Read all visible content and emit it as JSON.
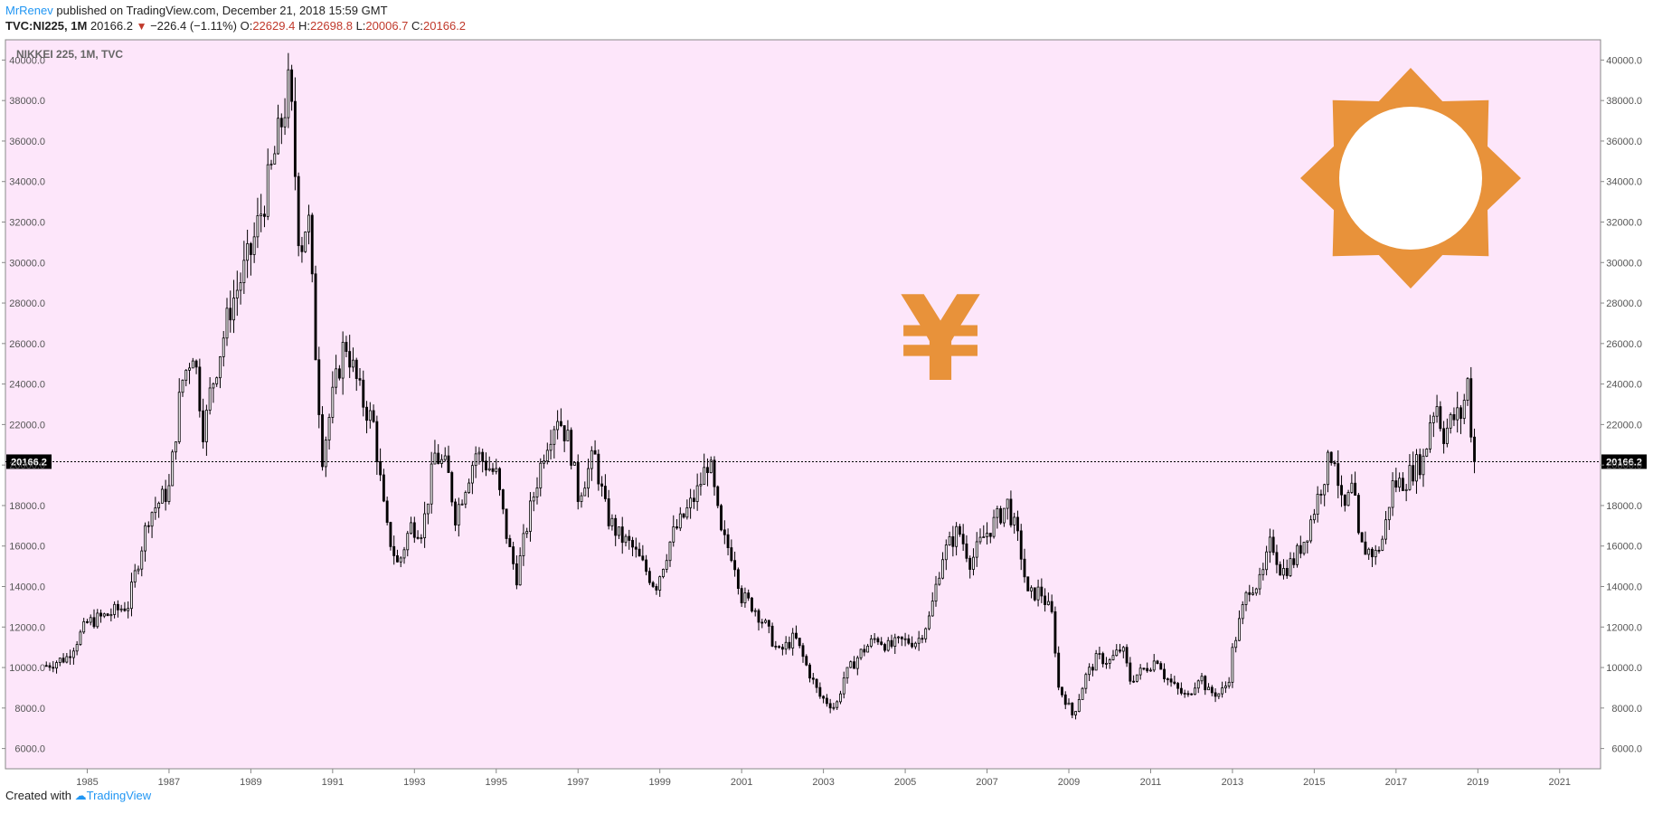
{
  "header": {
    "author": "MrRenev",
    "published": "published on TradingView.com, December 21, 2018 15:59 GMT",
    "symbol": "TVC:NI225, 1M",
    "last": "20166.2",
    "change": "−226.4 (−1.11%)",
    "o_label": "O:",
    "o_val": "22629.4",
    "h_label": "H:",
    "h_val": "22698.8",
    "l_label": "L:",
    "l_val": "20006.7",
    "c_label": "C:",
    "c_val": "20166.2"
  },
  "footer": {
    "created": "Created with",
    "brand": "TradingView"
  },
  "colors": {
    "background": "#fde6fa",
    "candle": "#000000",
    "decoration": "#e8923a",
    "last_price_label": "#000000"
  },
  "decorations": {
    "currency_symbol": "¥",
    "sun_icon": "sun-icon"
  },
  "chart_data": {
    "type": "candlestick",
    "title": "NIKKEI 225, 1M, TVC",
    "xlabel": "",
    "ylabel": "",
    "grid": false,
    "ylim": [
      5000,
      41000
    ],
    "xlim": [
      1983.0,
      2022.0
    ],
    "y_ticks": [
      "40000.0",
      "38000.0",
      "36000.0",
      "34000.0",
      "32000.0",
      "30000.0",
      "28000.0",
      "26000.0",
      "24000.0",
      "22000.0",
      "20000.0",
      "18000.0",
      "16000.0",
      "14000.0",
      "12000.0",
      "10000.0",
      "8000.0",
      "6000.0"
    ],
    "x_ticks": [
      "1985",
      "1987",
      "1989",
      "1991",
      "1993",
      "1995",
      "1997",
      "1999",
      "2001",
      "2003",
      "2005",
      "2007",
      "2009",
      "2011",
      "2013",
      "2015",
      "2017",
      "2019",
      "2021"
    ],
    "last_price": 20166.2,
    "last_price_label": "20166.2",
    "series_close": [
      [
        1984.0,
        10100
      ],
      [
        1984.5,
        10500
      ],
      [
        1985.0,
        12200
      ],
      [
        1985.5,
        12600
      ],
      [
        1986.0,
        13100
      ],
      [
        1986.5,
        17500
      ],
      [
        1987.0,
        18800
      ],
      [
        1987.3,
        24000
      ],
      [
        1987.6,
        25800
      ],
      [
        1987.85,
        21500
      ],
      [
        1988.0,
        23500
      ],
      [
        1988.5,
        27800
      ],
      [
        1989.0,
        30500
      ],
      [
        1989.5,
        34500
      ],
      [
        1989.95,
        38900
      ],
      [
        1990.2,
        30500
      ],
      [
        1990.4,
        32500
      ],
      [
        1990.6,
        25000
      ],
      [
        1990.75,
        20500
      ],
      [
        1991.0,
        23300
      ],
      [
        1991.3,
        26200
      ],
      [
        1991.7,
        23300
      ],
      [
        1992.0,
        22000
      ],
      [
        1992.3,
        17000
      ],
      [
        1992.6,
        15000
      ],
      [
        1992.9,
        17000
      ],
      [
        1993.2,
        16800
      ],
      [
        1993.5,
        20500
      ],
      [
        1993.8,
        19800
      ],
      [
        1994.0,
        17500
      ],
      [
        1994.5,
        20600
      ],
      [
        1995.0,
        19500
      ],
      [
        1995.3,
        16000
      ],
      [
        1995.5,
        14500
      ],
      [
        1995.8,
        17500
      ],
      [
        1996.2,
        21000
      ],
      [
        1996.5,
        22500
      ],
      [
        1996.8,
        21000
      ],
      [
        1997.0,
        18500
      ],
      [
        1997.4,
        20500
      ],
      [
        1997.7,
        17500
      ],
      [
        1998.0,
        16500
      ],
      [
        1998.3,
        16000
      ],
      [
        1998.6,
        15000
      ],
      [
        1998.9,
        14000
      ],
      [
        1999.3,
        16500
      ],
      [
        1999.6,
        17500
      ],
      [
        1999.9,
        18600
      ],
      [
        2000.2,
        20300
      ],
      [
        2000.5,
        16500
      ],
      [
        2000.8,
        15500
      ],
      [
        2001.0,
        13500
      ],
      [
        2001.3,
        13000
      ],
      [
        2001.6,
        12000
      ],
      [
        2001.9,
        10700
      ],
      [
        2002.3,
        11500
      ],
      [
        2002.6,
        10000
      ],
      [
        2002.9,
        8600
      ],
      [
        2003.3,
        8000
      ],
      [
        2003.5,
        9500
      ],
      [
        2003.9,
        10700
      ],
      [
        2004.3,
        11500
      ],
      [
        2004.6,
        11000
      ],
      [
        2004.9,
        11300
      ],
      [
        2005.3,
        11300
      ],
      [
        2005.6,
        12500
      ],
      [
        2005.9,
        15500
      ],
      [
        2006.3,
        16800
      ],
      [
        2006.6,
        15200
      ],
      [
        2006.9,
        16400
      ],
      [
        2007.3,
        17500
      ],
      [
        2007.5,
        18100
      ],
      [
        2007.8,
        16000
      ],
      [
        2008.0,
        13500
      ],
      [
        2008.3,
        13800
      ],
      [
        2008.6,
        12500
      ],
      [
        2008.75,
        9000
      ],
      [
        2008.9,
        8500
      ],
      [
        2009.1,
        7600
      ],
      [
        2009.4,
        9500
      ],
      [
        2009.7,
        10500
      ],
      [
        2010.0,
        10300
      ],
      [
        2010.3,
        11000
      ],
      [
        2010.5,
        9400
      ],
      [
        2010.9,
        10000
      ],
      [
        2011.2,
        10500
      ],
      [
        2011.3,
        9700
      ],
      [
        2011.6,
        9000
      ],
      [
        2011.9,
        8500
      ],
      [
        2012.2,
        9700
      ],
      [
        2012.4,
        8800
      ],
      [
        2012.7,
        8700
      ],
      [
        2012.9,
        9300
      ],
      [
        2013.0,
        10800
      ],
      [
        2013.2,
        12500
      ],
      [
        2013.4,
        14000
      ],
      [
        2013.7,
        14200
      ],
      [
        2013.95,
        16300
      ],
      [
        2014.2,
        14700
      ],
      [
        2014.5,
        15300
      ],
      [
        2014.8,
        16500
      ],
      [
        2014.95,
        17500
      ],
      [
        2015.2,
        19200
      ],
      [
        2015.4,
        20500
      ],
      [
        2015.5,
        20500
      ],
      [
        2015.7,
        17500
      ],
      [
        2015.95,
        19000
      ],
      [
        2016.1,
        16000
      ],
      [
        2016.5,
        15600
      ],
      [
        2016.7,
        16500
      ],
      [
        2016.9,
        19000
      ],
      [
        2017.2,
        19200
      ],
      [
        2017.5,
        20000
      ],
      [
        2017.7,
        20300
      ],
      [
        2017.85,
        22500
      ],
      [
        2018.0,
        23000
      ],
      [
        2018.15,
        21500
      ],
      [
        2018.4,
        22300
      ],
      [
        2018.6,
        22500
      ],
      [
        2018.75,
        24100
      ],
      [
        2018.83,
        21900
      ],
      [
        2018.92,
        20166.2
      ]
    ]
  }
}
